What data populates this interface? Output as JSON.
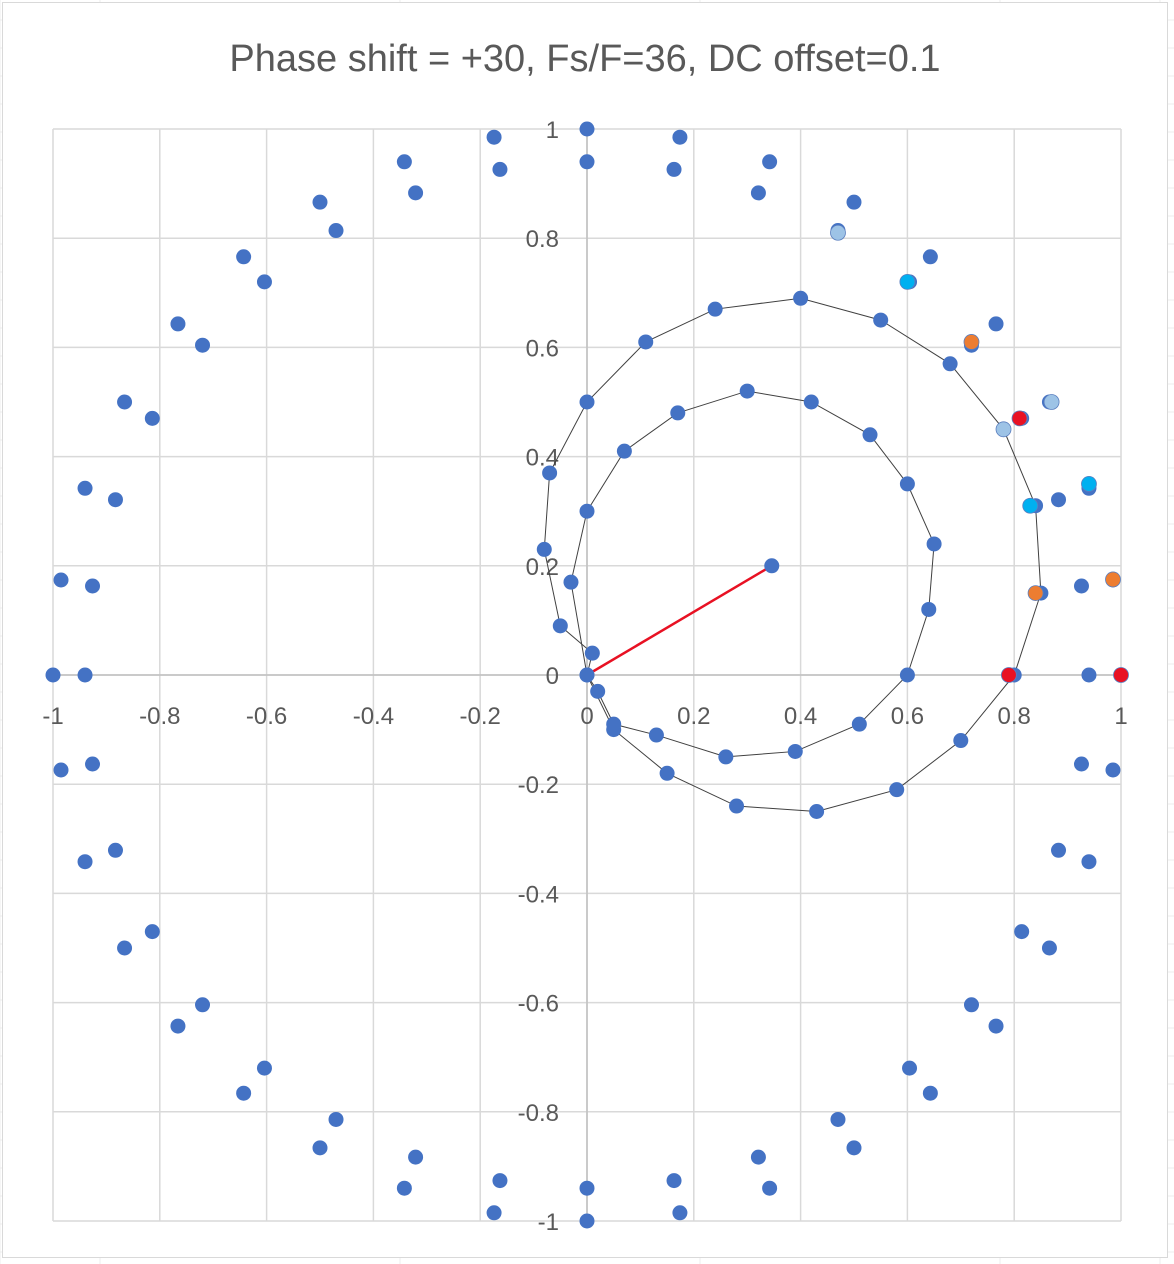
{
  "chart_data": {
    "type": "scatter",
    "title": "Phase shift = +30, Fs/F=36, DC offset=0.1",
    "xlabel": "",
    "ylabel": "",
    "xlim": [
      -1,
      1
    ],
    "ylim": [
      -1,
      1
    ],
    "xticks": [
      "-1",
      "-0.8",
      "-0.6",
      "-0.4",
      "-0.2",
      "0",
      "0.2",
      "0.4",
      "0.6",
      "0.8",
      "1"
    ],
    "yticks": [
      "-1",
      "-0.8",
      "-0.6",
      "-0.4",
      "-0.2",
      "0",
      "0.2",
      "0.4",
      "0.6",
      "0.8",
      "1"
    ],
    "grid": true,
    "legend": "none",
    "colors": {
      "marker": "#4472c4",
      "light_blue": "#9dc3e6",
      "cyan": "#00b0f0",
      "orange": "#ed7d31",
      "red": "#e81123",
      "line": "#404040",
      "vector": "#e81123",
      "grid": "#d9d9d9"
    },
    "series": [
      {
        "values": [
          [
            1,
            0
          ],
          [
            0.985,
            0.174
          ],
          [
            0.94,
            0.342
          ],
          [
            0.866,
            0.5
          ],
          [
            0.766,
            0.643
          ],
          [
            0.643,
            0.766
          ],
          [
            0.5,
            0.866
          ],
          [
            0.342,
            0.94
          ],
          [
            0.174,
            0.985
          ],
          [
            0,
            1
          ],
          [
            -0.174,
            0.985
          ],
          [
            -0.342,
            0.94
          ],
          [
            -0.5,
            0.866
          ],
          [
            -0.643,
            0.766
          ],
          [
            -0.766,
            0.643
          ],
          [
            -0.866,
            0.5
          ],
          [
            -0.94,
            0.342
          ],
          [
            -0.985,
            0.174
          ],
          [
            -1,
            0
          ],
          [
            -0.985,
            -0.174
          ],
          [
            -0.94,
            -0.342
          ],
          [
            -0.866,
            -0.5
          ],
          [
            -0.766,
            -0.643
          ],
          [
            -0.643,
            -0.766
          ],
          [
            -0.5,
            -0.866
          ],
          [
            -0.342,
            -0.94
          ],
          [
            -0.174,
            -0.985
          ],
          [
            0,
            -1
          ],
          [
            0.174,
            -0.985
          ],
          [
            0.342,
            -0.94
          ],
          [
            0.5,
            -0.866
          ],
          [
            0.643,
            -0.766
          ],
          [
            0.766,
            -0.643
          ],
          [
            0.866,
            -0.5
          ],
          [
            0.94,
            -0.342
          ],
          [
            0.985,
            -0.174
          ]
        ]
      },
      {
        "values": [
          [
            0.94,
            0
          ],
          [
            0.926,
            0.163
          ],
          [
            0.883,
            0.321
          ],
          [
            0.814,
            0.47
          ],
          [
            0.72,
            0.604
          ],
          [
            0.604,
            0.72
          ],
          [
            0.47,
            0.814
          ],
          [
            0.321,
            0.883
          ],
          [
            0.163,
            0.926
          ],
          [
            0,
            0.94
          ],
          [
            -0.163,
            0.926
          ],
          [
            -0.321,
            0.883
          ],
          [
            -0.47,
            0.814
          ],
          [
            -0.604,
            0.72
          ],
          [
            -0.72,
            0.604
          ],
          [
            -0.814,
            0.47
          ],
          [
            -0.883,
            0.321
          ],
          [
            -0.926,
            0.163
          ],
          [
            -0.94,
            0
          ],
          [
            -0.926,
            -0.163
          ],
          [
            -0.883,
            -0.321
          ],
          [
            -0.814,
            -0.47
          ],
          [
            -0.72,
            -0.604
          ],
          [
            -0.604,
            -0.72
          ],
          [
            -0.47,
            -0.814
          ],
          [
            -0.321,
            -0.883
          ],
          [
            -0.163,
            -0.926
          ],
          [
            0,
            -0.94
          ],
          [
            0.163,
            -0.926
          ],
          [
            0.321,
            -0.883
          ],
          [
            0.47,
            -0.814
          ],
          [
            0.604,
            -0.72
          ],
          [
            0.72,
            -0.604
          ],
          [
            0.814,
            -0.47
          ],
          [
            0.883,
            -0.321
          ],
          [
            0.926,
            -0.163
          ]
        ]
      },
      {
        "line": true,
        "values": [
          [
            0,
            0
          ],
          [
            0.01,
            0.04
          ],
          [
            -0.05,
            0.09
          ],
          [
            -0.08,
            0.23
          ],
          [
            -0.07,
            0.37
          ],
          [
            0,
            0.5
          ],
          [
            0.11,
            0.61
          ],
          [
            0.24,
            0.67
          ],
          [
            0.4,
            0.69
          ],
          [
            0.55,
            0.65
          ],
          [
            0.68,
            0.57
          ],
          [
            0.78,
            0.45
          ],
          [
            0.84,
            0.31
          ],
          [
            0.85,
            0.15
          ],
          [
            0.8,
            0
          ],
          [
            0.7,
            -0.12
          ],
          [
            0.58,
            -0.21
          ],
          [
            0.43,
            -0.25
          ],
          [
            0.28,
            -0.24
          ],
          [
            0.15,
            -0.18
          ],
          [
            0.05,
            -0.1
          ],
          [
            0,
            0
          ]
        ]
      },
      {
        "line": true,
        "values": [
          [
            0,
            0
          ],
          [
            -0.03,
            0.17
          ],
          [
            0,
            0.3
          ],
          [
            0.07,
            0.41
          ],
          [
            0.17,
            0.48
          ],
          [
            0.3,
            0.52
          ],
          [
            0.42,
            0.5
          ],
          [
            0.53,
            0.44
          ],
          [
            0.6,
            0.35
          ],
          [
            0.65,
            0.24
          ],
          [
            0.64,
            0.12
          ],
          [
            0.6,
            0
          ],
          [
            0.51,
            -0.09
          ],
          [
            0.39,
            -0.14
          ],
          [
            0.26,
            -0.15
          ],
          [
            0.13,
            -0.11
          ],
          [
            0.05,
            -0.09
          ],
          [
            0.02,
            -0.03
          ],
          [
            0,
            0
          ]
        ]
      },
      {
        "values": [
          [
            0.47,
            0.81
          ],
          [
            0.6,
            0.72
          ],
          [
            0.72,
            0.61
          ],
          [
            0.81,
            0.47
          ],
          [
            0.87,
            0.5
          ],
          [
            0.78,
            0.45
          ],
          [
            0.83,
            0.31
          ],
          [
            0.94,
            0.35
          ],
          [
            0.84,
            0.15
          ],
          [
            0.985,
            0.175
          ],
          [
            0.79,
            0
          ],
          [
            1,
            0
          ]
        ]
      },
      {
        "line": true,
        "values": [
          [
            0,
            0
          ],
          [
            0.346,
            0.2
          ]
        ]
      }
    ]
  }
}
